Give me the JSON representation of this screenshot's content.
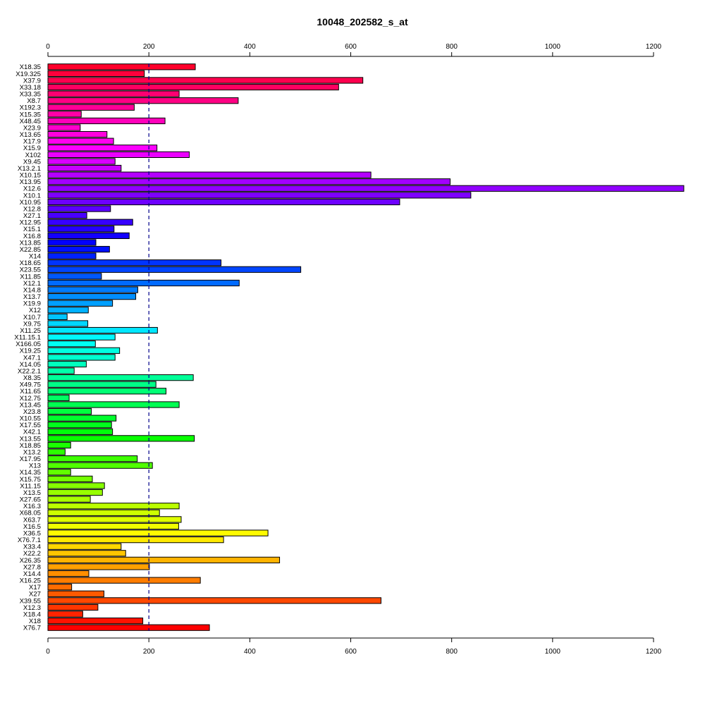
{
  "chart_data": {
    "type": "bar",
    "orientation": "horizontal",
    "title": "10048_202582_s_at",
    "xlabel": "",
    "ylabel": "",
    "xlim": [
      0,
      1260
    ],
    "x_ticks": [
      0,
      200,
      400,
      600,
      800,
      1000,
      1200
    ],
    "reference_line": {
      "value": 200,
      "style": "dashed",
      "color": "#00008B"
    },
    "grid": false,
    "legend": "none",
    "categories": [
      "X18.35",
      "X19.325",
      "X37.9",
      "X33.18",
      "X33.35",
      "X8.7",
      "X192.3",
      "X15.35",
      "X48.45",
      "X23.9",
      "X13.65",
      "X17.9",
      "X15.9",
      "X102",
      "X9.45",
      "X13.2.1",
      "X10.15",
      "X13.95",
      "X12.6",
      "X10.1",
      "X10.95",
      "X12.8",
      "X27.1",
      "X12.95",
      "X15.1",
      "X16.8",
      "X13.85",
      "X22.85",
      "X14",
      "X18.65",
      "X23.55",
      "X11.85",
      "X12.1",
      "X14.8",
      "X13.7",
      "X19.9",
      "X12",
      "X10.7",
      "X9.75",
      "X11.25",
      "X11.15.1",
      "X166.05",
      "X19.25",
      "X47.1",
      "X14.05",
      "X22.2.1",
      "X8.35",
      "X49.75",
      "X11.65",
      "X12.75",
      "X13.45",
      "X23.8",
      "X10.55",
      "X17.55",
      "X42.1",
      "X13.55",
      "X18.85",
      "X13.2",
      "X17.95",
      "X13",
      "X14.35",
      "X15.75",
      "X11.15",
      "X13.5",
      "X27.65",
      "X16.3",
      "X68.05",
      "X63.7",
      "X16.5",
      "X36.5",
      "X76.7.1",
      "X33.4",
      "X22.2",
      "X26.35",
      "X27.8",
      "X14.4",
      "X16.25",
      "X17",
      "X27",
      "X39.55",
      "X12.3",
      "X18.4",
      "X18",
      "X76.7"
    ],
    "values": [
      292,
      191,
      624,
      576,
      260,
      377,
      171,
      66,
      232,
      64,
      117,
      130,
      216,
      280,
      133,
      145,
      640,
      797,
      1260,
      838,
      697,
      124,
      77,
      168,
      131,
      161,
      95,
      122,
      95,
      343,
      501,
      106,
      379,
      178,
      174,
      128,
      80,
      38,
      79,
      217,
      133,
      94,
      142,
      133,
      76,
      52,
      288,
      214,
      234,
      42,
      260,
      86,
      135,
      126,
      128,
      290,
      45,
      34,
      177,
      207,
      45,
      88,
      112,
      108,
      84,
      260,
      221,
      264,
      259,
      436,
      348,
      145,
      154,
      459,
      201,
      81,
      302,
      47,
      111,
      660,
      99,
      69,
      188,
      320
    ]
  }
}
